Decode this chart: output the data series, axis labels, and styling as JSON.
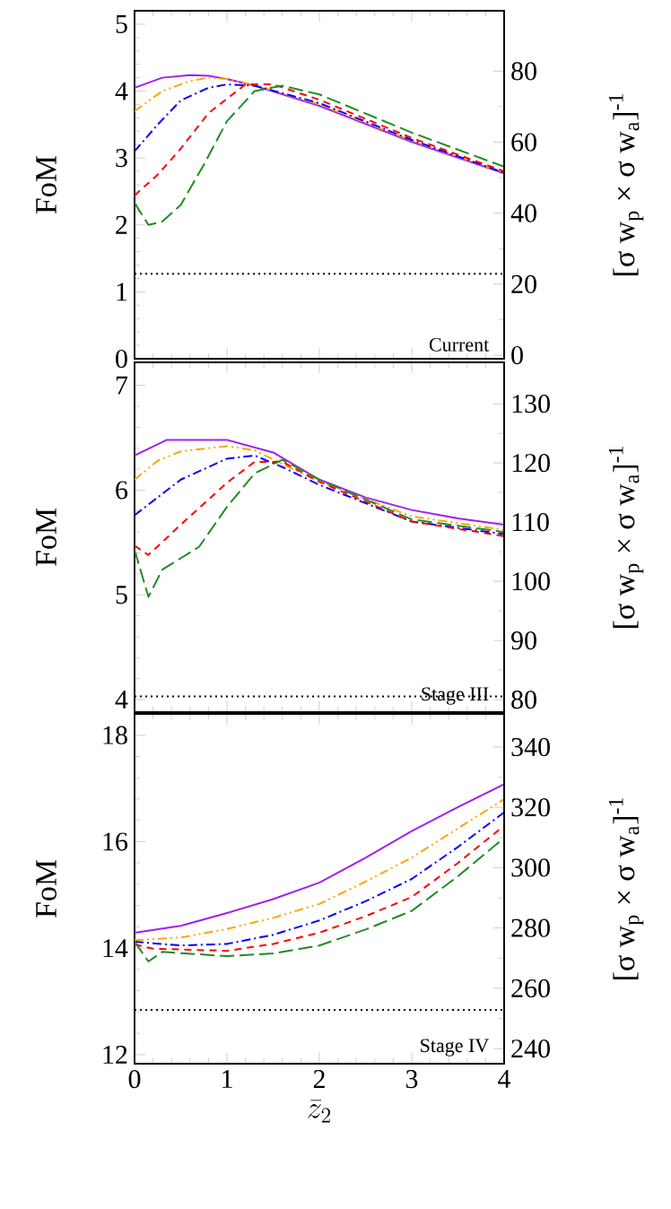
{
  "chart_data": [
    {
      "type": "line",
      "ylabel": "FoM",
      "y2label": "[σ w$_{p}$ × σ w$_{a}$]$^{-1}$",
      "xlim": [
        0,
        4
      ],
      "xticks": [
        0,
        1,
        2,
        3,
        4
      ],
      "ylim": [
        0,
        5.2
      ],
      "yticks": [
        0,
        1,
        2,
        3,
        4,
        5
      ],
      "y2lim": [
        -1,
        97
      ],
      "y2ticks": [
        0,
        20,
        40,
        60,
        80
      ],
      "tick_labels": "y",
      "series": [
        {
          "color": "#a020f0",
          "line_style": "solid",
          "x": [
            0,
            0.3,
            0.6,
            0.8,
            1,
            1.3,
            2,
            3,
            4
          ],
          "values": [
            4.05,
            4.2,
            4.24,
            4.23,
            4.18,
            4.08,
            3.78,
            3.24,
            2.77
          ]
        },
        {
          "color": "#ffa500",
          "line_style": "dashdotdotted",
          "x": [
            0,
            0.3,
            0.6,
            0.8,
            1,
            1.3,
            2,
            3,
            4
          ],
          "values": [
            3.7,
            4.0,
            4.15,
            4.2,
            4.18,
            4.09,
            3.8,
            3.26,
            2.78
          ]
        },
        {
          "color": "#0000ff",
          "line_style": "dashdotted",
          "x": [
            0,
            0.25,
            0.5,
            0.8,
            1,
            1.3,
            2,
            3,
            4
          ],
          "values": [
            3.1,
            3.5,
            3.86,
            4.05,
            4.1,
            4.08,
            3.82,
            3.27,
            2.78
          ]
        },
        {
          "color": "#ff0000",
          "line_style": "dashed",
          "x": [
            0,
            0.25,
            0.5,
            0.8,
            1.2,
            1.5,
            2,
            3,
            4
          ],
          "values": [
            2.44,
            2.75,
            3.14,
            3.67,
            4.1,
            4.1,
            3.87,
            3.3,
            2.8
          ]
        },
        {
          "color": "#228b22",
          "line_style": "longdashed",
          "x": [
            0,
            0.15,
            0.3,
            0.5,
            0.75,
            1,
            1.3,
            1.6,
            2,
            3,
            4
          ],
          "values": [
            2.33,
            2.0,
            2.05,
            2.3,
            2.9,
            3.55,
            4.0,
            4.08,
            3.95,
            3.38,
            2.87
          ]
        }
      ],
      "ref_lines": [
        {
          "axis": "y",
          "value": 1.27,
          "color": "#000000",
          "line_style": "dotted"
        }
      ],
      "annotations": [
        "Current"
      ]
    },
    {
      "type": "line",
      "ylabel": "FoM",
      "y2label": "[σ w$_{p}$ × σ w$_{a}$]$^{-1}$",
      "xlim": [
        0,
        4
      ],
      "xticks": [
        0,
        1,
        2,
        3,
        4
      ],
      "ylim": [
        3.88,
        7.22
      ],
      "yticks": [
        4,
        5,
        6,
        7
      ],
      "y2lim": [
        77.9,
        137
      ],
      "y2ticks": [
        80,
        90,
        100,
        110,
        120,
        130
      ],
      "tick_labels": "y",
      "series": [
        {
          "color": "#a020f0",
          "line_style": "solid",
          "x": [
            0,
            0.35,
            1,
            1.5,
            2,
            2.5,
            3,
            3.5,
            4
          ],
          "values": [
            6.33,
            6.48,
            6.48,
            6.36,
            6.1,
            5.93,
            5.81,
            5.73,
            5.67
          ]
        },
        {
          "color": "#ffa500",
          "line_style": "dashdotdotted",
          "x": [
            0,
            0.25,
            0.5,
            1,
            1.3,
            1.6,
            2,
            3,
            4
          ],
          "values": [
            6.1,
            6.28,
            6.37,
            6.42,
            6.38,
            6.25,
            6.08,
            5.75,
            5.62
          ]
        },
        {
          "color": "#0000ff",
          "line_style": "dashdotted",
          "x": [
            0,
            0.25,
            0.5,
            1,
            1.3,
            1.6,
            2,
            3,
            4
          ],
          "values": [
            5.76,
            5.93,
            6.1,
            6.3,
            6.33,
            6.22,
            6.05,
            5.7,
            5.58
          ]
        },
        {
          "color": "#ff0000",
          "line_style": "dashed",
          "x": [
            0,
            0.15,
            0.5,
            1,
            1.3,
            1.6,
            2,
            3,
            4
          ],
          "values": [
            5.47,
            5.38,
            5.67,
            6.07,
            6.27,
            6.27,
            6.08,
            5.7,
            5.56
          ]
        },
        {
          "color": "#228b22",
          "line_style": "longdashed",
          "x": [
            0,
            0.15,
            0.3,
            0.7,
            1,
            1.3,
            1.6,
            2,
            3,
            4
          ],
          "values": [
            5.43,
            4.98,
            5.24,
            5.46,
            5.84,
            6.16,
            6.29,
            6.1,
            5.72,
            5.6
          ]
        }
      ],
      "ref_lines": [
        {
          "axis": "y",
          "value": 4.03,
          "color": "#000000",
          "line_style": "dotted"
        }
      ],
      "annotations": [
        "Stage III"
      ]
    },
    {
      "type": "line",
      "ylabel": "FoM",
      "y2label": "[σ w$_{p}$ × σ w$_{a}$]$^{-1}$",
      "xlabel": "\\bar{z}_2",
      "xlim": [
        0,
        4
      ],
      "xticks": [
        0,
        1,
        2,
        3,
        4
      ],
      "ylim": [
        11.83,
        18.4
      ],
      "yticks": [
        12,
        14,
        16,
        18
      ],
      "y2lim": [
        235,
        351
      ],
      "y2ticks": [
        240,
        260,
        280,
        300,
        320,
        340
      ],
      "series": [
        {
          "color": "#a020f0",
          "line_style": "solid",
          "x": [
            0,
            0.5,
            1,
            1.5,
            2,
            2.5,
            3,
            3.5,
            4
          ],
          "values": [
            14.29,
            14.42,
            14.66,
            14.92,
            15.23,
            15.7,
            16.2,
            16.65,
            17.08
          ]
        },
        {
          "color": "#ffa500",
          "line_style": "dashdotdotted",
          "x": [
            0,
            0.5,
            1,
            1.5,
            2,
            2.5,
            3,
            3.5,
            4
          ],
          "values": [
            14.15,
            14.2,
            14.36,
            14.57,
            14.83,
            15.25,
            15.7,
            16.25,
            16.8
          ]
        },
        {
          "color": "#0000ff",
          "line_style": "dashdotted",
          "x": [
            0,
            0.5,
            1,
            1.5,
            2,
            2.5,
            3,
            3.5,
            4
          ],
          "values": [
            14.12,
            14.05,
            14.08,
            14.25,
            14.52,
            14.88,
            15.3,
            15.9,
            16.55
          ]
        },
        {
          "color": "#ff0000",
          "line_style": "dashed",
          "x": [
            0,
            0.2,
            1,
            1.5,
            2,
            2.5,
            3,
            3.5,
            4
          ],
          "values": [
            14.07,
            13.99,
            13.95,
            14.08,
            14.29,
            14.6,
            14.96,
            15.6,
            16.3
          ]
        },
        {
          "color": "#228b22",
          "line_style": "longdashed",
          "x": [
            0,
            0.15,
            0.3,
            1,
            1.5,
            2,
            2.5,
            3,
            3.5,
            4
          ],
          "values": [
            14.12,
            13.75,
            13.93,
            13.85,
            13.9,
            14.05,
            14.35,
            14.7,
            15.35,
            16.07
          ]
        }
      ],
      "ref_lines": [
        {
          "axis": "y",
          "value": 12.84,
          "color": "#000000",
          "line_style": "dotted"
        }
      ],
      "annotations": [
        "Stage IV"
      ]
    }
  ]
}
